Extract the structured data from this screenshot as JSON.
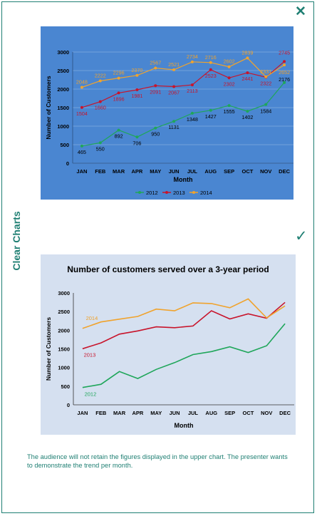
{
  "side_title": "Clear Charts",
  "icons": {
    "bad": "close-x-icon",
    "good": "checkmark-icon",
    "accent": "#1f7f73"
  },
  "caption": "The audience will not retain the figures displayed in the upper chart. The presenter wants to demonstrate the trend per month.",
  "chart_data": [
    {
      "type": "line",
      "style": "cluttered-data-labels",
      "background": "#4a86d1",
      "categories": [
        "JAN",
        "FEB",
        "MAR",
        "APR",
        "MAY",
        "JUN",
        "JUL",
        "AUG",
        "SEP",
        "OCT",
        "NOV",
        "DEC"
      ],
      "series": [
        {
          "name": "2012",
          "color": "#1fa65a",
          "values": [
            465,
            550,
            892,
            706,
            950,
            1131,
            1348,
            1427,
            1555,
            1402,
            1584,
            2176
          ]
        },
        {
          "name": "2013",
          "color": "#c8142b",
          "values": [
            1504,
            1660,
            1896,
            1981,
            2091,
            2067,
            2113,
            2523,
            2302,
            2441,
            2322,
            2745
          ]
        },
        {
          "name": "2014",
          "color": "#f0a32d",
          "values": [
            2048,
            2222,
            2296,
            2370,
            2567,
            2521,
            2734,
            2716,
            2602,
            2839,
            2331,
            2652
          ]
        }
      ],
      "ylabel": "Number of Customers",
      "xlabel": "Month",
      "ylim": [
        0,
        3000
      ],
      "yticks": [
        0,
        500,
        1000,
        1500,
        2000,
        2500,
        3000
      ],
      "grid": true,
      "legend": "bottom"
    },
    {
      "type": "line",
      "style": "clean-direct-labels",
      "background": "#d5e0f0",
      "title": "Number of customers served over a 3-year period",
      "categories": [
        "JAN",
        "FEB",
        "MAR",
        "APR",
        "MAY",
        "JUN",
        "JUL",
        "AUG",
        "SEP",
        "OCT",
        "NOV",
        "DEC"
      ],
      "series": [
        {
          "name": "2012",
          "color": "#1fa65a",
          "values": [
            465,
            550,
            892,
            706,
            950,
            1131,
            1348,
            1427,
            1555,
            1402,
            1584,
            2176
          ]
        },
        {
          "name": "2013",
          "color": "#c8142b",
          "values": [
            1504,
            1660,
            1896,
            1981,
            2091,
            2067,
            2113,
            2523,
            2302,
            2441,
            2322,
            2745
          ]
        },
        {
          "name": "2014",
          "color": "#f0a32d",
          "values": [
            2048,
            2222,
            2296,
            2370,
            2567,
            2521,
            2734,
            2716,
            2602,
            2839,
            2331,
            2652
          ]
        }
      ],
      "ylabel": "Number of Customers",
      "xlabel": "Month",
      "ylim": [
        0,
        3000
      ],
      "yticks": [
        0,
        500,
        1000,
        1500,
        2000,
        2500,
        3000
      ],
      "grid": false,
      "legend": "none (direct labels)"
    }
  ]
}
